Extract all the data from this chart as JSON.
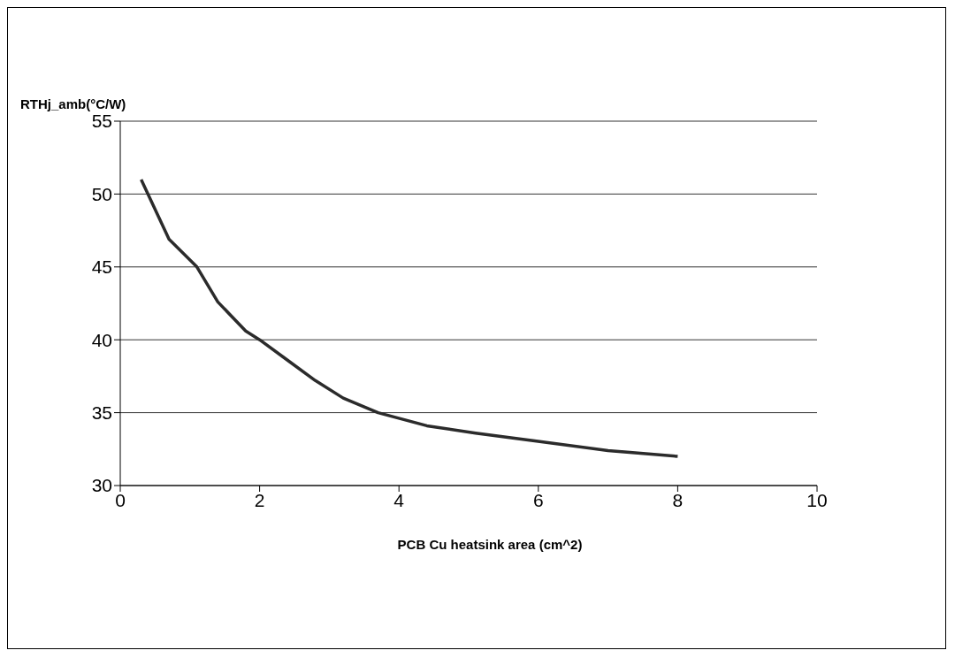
{
  "chart_data": {
    "type": "line",
    "xlabel": "PCB Cu heatsink area (cm^2)",
    "ylabel": "RTHj_amb(°C/W)",
    "x": [
      0.3,
      0.7,
      1.1,
      1.4,
      1.8,
      2.0,
      2.4,
      2.8,
      3.2,
      3.7,
      4.4,
      5.1,
      5.9,
      7.0,
      8.0
    ],
    "series": [
      {
        "color": "#2b2b2b",
        "values": [
          51.0,
          46.9,
          45.0,
          42.6,
          40.6,
          40.0,
          38.6,
          37.2,
          36.0,
          35.0,
          34.1,
          33.6,
          33.1,
          32.4,
          32.0
        ]
      }
    ],
    "xlim": [
      0,
      10
    ],
    "xticks": [
      0,
      2,
      4,
      6,
      8,
      10
    ],
    "ylim": [
      30,
      55
    ],
    "yticks": [
      30,
      35,
      40,
      45,
      50,
      55
    ],
    "grid": "y",
    "legend": false,
    "marker": "none",
    "line_style": "solid"
  }
}
